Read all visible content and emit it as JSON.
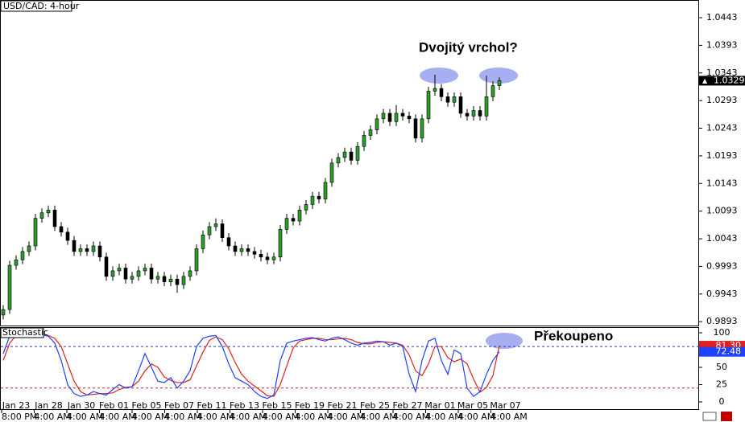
{
  "chart_data": [
    {
      "type": "candlestick",
      "title": "USD/CAD: 4-hour",
      "annotation": "Dvojitý vrchol?",
      "up_color": "#2a9d2a",
      "down_color": "#000000",
      "ylim": [
        0.9886,
        1.0475
      ],
      "yticks": [
        0.9893,
        0.9943,
        0.9993,
        1.0043,
        1.0093,
        1.0143,
        1.0193,
        1.0243,
        1.0293,
        1.0343,
        1.0393,
        1.0443
      ],
      "xtick_labels": [
        "Jan 23",
        "Jan 28",
        "Jan 30",
        "Feb 01",
        "Feb 05",
        "Feb 07",
        "Feb 11",
        "Feb 13",
        "Feb 15",
        "Feb 19",
        "Feb 21",
        "Feb 25",
        "Feb 27",
        "Mar 01",
        "Mar 05",
        "Mar 07"
      ],
      "xtick_times": [
        "8:00 PM",
        "4:00 AM",
        "4:00 AM",
        "4:00 AM",
        "4:00 AM",
        "4:00 AM",
        "4:00 AM",
        "4:00 AM",
        "4:00 AM",
        "4:00 AM",
        "4:00 AM",
        "4:00 AM",
        "4:00 AM",
        "4:00 AM",
        "4:00 AM",
        "4:00 AM"
      ],
      "open": [
        0.9905,
        0.9915,
        0.9995,
        1.0005,
        1.002,
        1.003,
        1.008,
        1.009,
        1.0095,
        1.0065,
        1.0055,
        1.004,
        1.002,
        1.0025,
        1.002,
        1.003,
        1.001,
        0.9975,
        0.9985,
        0.999,
        0.997,
        0.9975,
        0.9985,
        0.999,
        0.997,
        0.9975,
        0.9965,
        0.997,
        0.996,
        0.9975,
        0.9985,
        1.0025,
        1.005,
        1.0065,
        1.007,
        1.0045,
        1.003,
        1.002,
        1.0025,
        1.002,
        1.0015,
        1.001,
        1.0005,
        1.001,
        1.006,
        1.008,
        1.0075,
        1.0095,
        1.0105,
        1.012,
        1.0115,
        1.0145,
        1.018,
        1.019,
        1.02,
        1.0185,
        1.021,
        1.023,
        1.024,
        1.026,
        1.027,
        1.0255,
        1.027,
        1.0265,
        1.026,
        1.0225,
        1.026,
        1.031,
        1.0315,
        1.03,
        1.029,
        1.03,
        1.027,
        1.0265,
        1.0275,
        1.0265,
        1.03,
        1.032
      ],
      "high": [
        0.9923,
        1.0003,
        1.0013,
        1.0028,
        1.0038,
        1.0088,
        1.0098,
        1.0103,
        1.0103,
        1.0073,
        1.0063,
        1.0048,
        1.0033,
        1.0033,
        1.0038,
        1.0038,
        1.0018,
        0.9993,
        0.9998,
        0.9998,
        0.9983,
        0.9993,
        0.9998,
        0.9998,
        0.9983,
        0.9983,
        0.9978,
        0.9978,
        0.9983,
        0.9993,
        1.0033,
        1.0058,
        1.0073,
        1.008,
        1.0078,
        1.0053,
        1.0038,
        1.0033,
        1.0033,
        1.0028,
        1.0023,
        1.0018,
        1.0018,
        1.0068,
        1.0088,
        1.0088,
        1.0103,
        1.0113,
        1.0128,
        1.0128,
        1.0153,
        1.0188,
        1.0198,
        1.0208,
        1.0208,
        1.0218,
        1.0238,
        1.0248,
        1.0268,
        1.0278,
        1.0278,
        1.0285,
        1.0278,
        1.0273,
        1.0268,
        1.0268,
        1.0318,
        1.034,
        1.0323,
        1.0308,
        1.0308,
        1.0308,
        1.0278,
        1.0283,
        1.0283,
        1.0338,
        1.0328,
        1.0335
      ],
      "low": [
        0.9897,
        0.9907,
        0.9987,
        0.9997,
        1.0012,
        1.0022,
        1.0072,
        1.0082,
        1.0057,
        1.0047,
        1.0032,
        1.0012,
        1.0012,
        1.0012,
        1.0012,
        1.0002,
        0.9967,
        0.9967,
        0.9977,
        0.9962,
        0.9962,
        0.9967,
        0.9977,
        0.9962,
        0.9962,
        0.9957,
        0.9957,
        0.9945,
        0.9952,
        0.9967,
        0.9977,
        1.0017,
        1.0042,
        1.0057,
        1.0037,
        1.0022,
        1.0012,
        1.0012,
        1.0012,
        1.0007,
        1.0002,
        0.9997,
        0.9997,
        1.0002,
        1.0052,
        1.0067,
        1.0067,
        1.0087,
        1.0097,
        1.0107,
        1.0107,
        1.0137,
        1.0172,
        1.0182,
        1.0177,
        1.0177,
        1.0202,
        1.0222,
        1.0232,
        1.0252,
        1.0247,
        1.0247,
        1.0257,
        1.0252,
        1.0217,
        1.0217,
        1.0252,
        1.0302,
        1.0292,
        1.0282,
        1.0282,
        1.0262,
        1.0257,
        1.0257,
        1.0257,
        1.0257,
        1.0292,
        1.0312
      ],
      "close": [
        0.9915,
        0.9995,
        1.0005,
        1.002,
        1.003,
        1.008,
        1.009,
        1.0095,
        1.0065,
        1.0055,
        1.004,
        1.002,
        1.0025,
        1.002,
        1.003,
        1.001,
        0.9975,
        0.9985,
        0.999,
        0.997,
        0.9975,
        0.9985,
        0.999,
        0.997,
        0.9975,
        0.9965,
        0.997,
        0.996,
        0.9975,
        0.9985,
        1.0025,
        1.005,
        1.0065,
        1.007,
        1.0045,
        1.003,
        1.002,
        1.0025,
        1.002,
        1.0015,
        1.001,
        1.0005,
        1.001,
        1.006,
        1.008,
        1.0075,
        1.0095,
        1.0105,
        1.012,
        1.0115,
        1.0145,
        1.018,
        1.019,
        1.02,
        1.0185,
        1.021,
        1.023,
        1.024,
        1.026,
        1.027,
        1.0255,
        1.027,
        1.0265,
        1.026,
        1.0225,
        1.026,
        1.031,
        1.0315,
        1.03,
        1.029,
        1.03,
        1.027,
        1.0265,
        1.0275,
        1.0265,
        1.03,
        1.032,
        1.0329
      ]
    },
    {
      "type": "line",
      "title": "Stochastic",
      "annotation": "Překoupeno",
      "ylim": [
        -11.6,
        108.1
      ],
      "yticks": [
        0,
        25,
        50,
        75,
        100
      ],
      "levels": [
        {
          "value": 80,
          "color": "#3030c0"
        },
        {
          "value": 20,
          "color": "#d02020"
        }
      ],
      "series": [
        {
          "color": "#e02020",
          "last": {
            "value": 81.3,
            "label": "81.30"
          },
          "values": [
            60,
            85,
            96,
            97,
            97,
            97,
            97,
            96,
            92,
            80,
            55,
            30,
            15,
            10,
            11,
            12,
            12,
            13,
            18,
            21,
            22,
            30,
            45,
            55,
            50,
            36,
            31,
            28,
            28,
            32,
            52,
            72,
            89,
            94,
            90,
            77,
            57,
            40,
            30,
            23,
            16,
            9,
            8,
            25,
            52,
            78,
            88,
            90,
            92,
            92,
            90,
            90,
            91,
            92,
            90,
            86,
            84,
            84,
            86,
            87,
            86,
            85,
            82,
            68,
            45,
            38,
            55,
            80,
            80,
            64,
            58,
            62,
            55,
            33,
            14,
            21,
            38,
            81.3
          ]
        },
        {
          "color": "#2040ff",
          "last": {
            "value": 72.48,
            "label": "72.48"
          },
          "values": [
            70,
            95,
            98,
            96,
            97,
            98,
            97,
            95,
            85,
            60,
            25,
            12,
            8,
            10,
            15,
            12,
            10,
            18,
            25,
            20,
            22,
            45,
            70,
            50,
            30,
            28,
            35,
            20,
            30,
            45,
            80,
            92,
            95,
            96,
            80,
            55,
            35,
            30,
            25,
            15,
            8,
            5,
            10,
            60,
            85,
            88,
            90,
            92,
            93,
            90,
            88,
            92,
            94,
            90,
            85,
            82,
            85,
            86,
            88,
            87,
            82,
            85,
            80,
            40,
            15,
            60,
            88,
            92,
            60,
            40,
            75,
            70,
            20,
            8,
            15,
            40,
            60,
            72.48
          ]
        }
      ]
    }
  ]
}
